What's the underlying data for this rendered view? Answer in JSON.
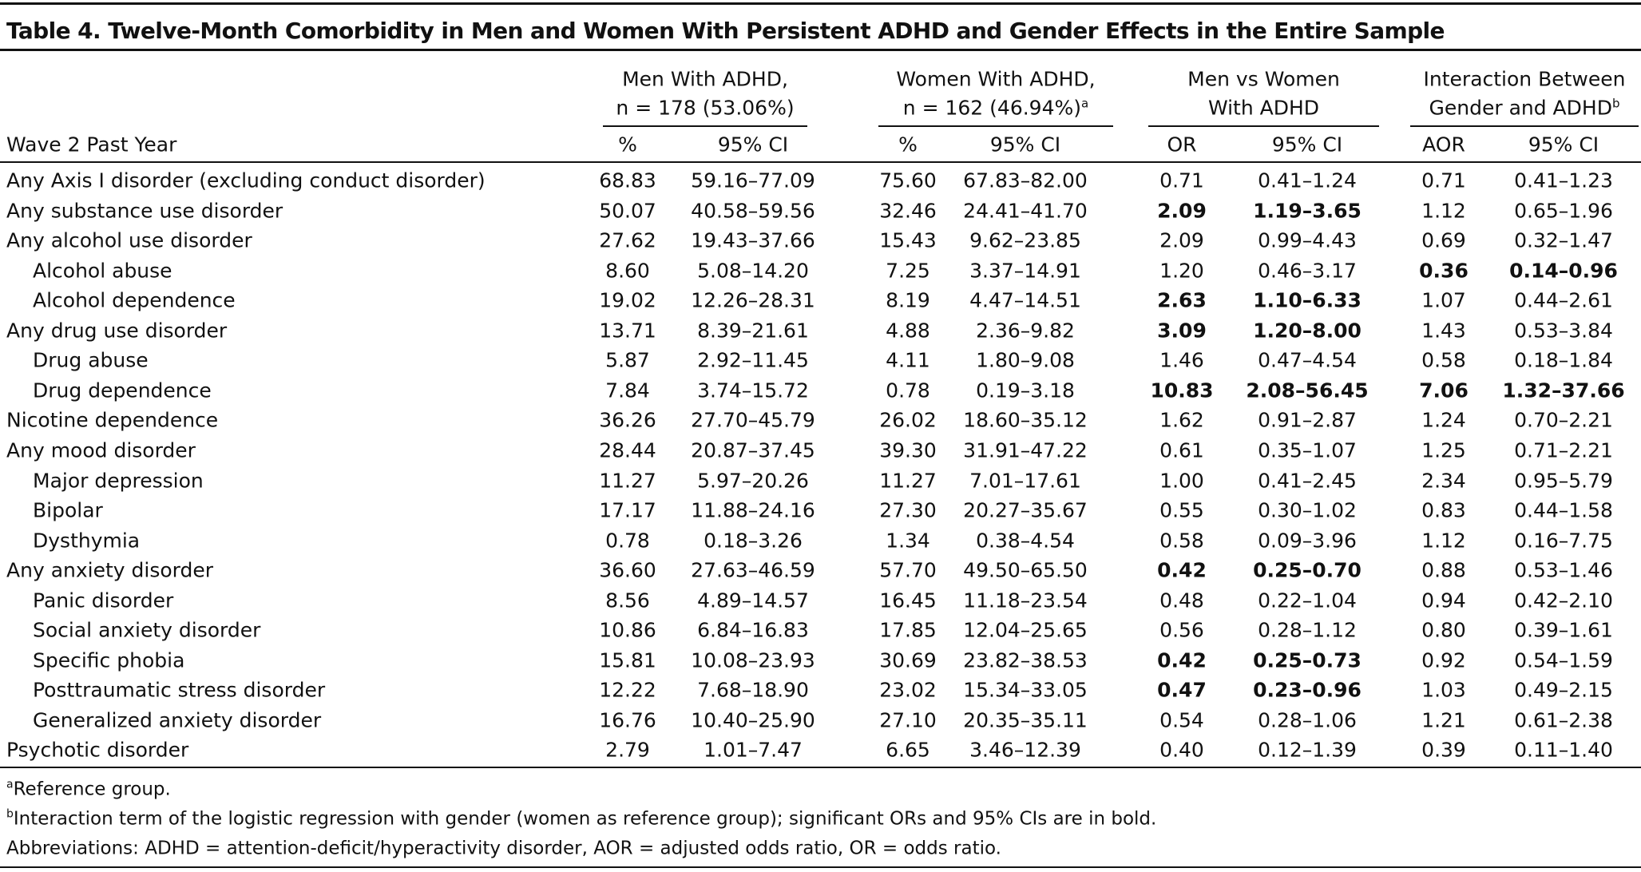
{
  "title": "Table 4. Twelve-Month Comorbidity in Men and Women With Persistent ADHD and Gender Effects in the Entire Sample",
  "groups": [
    {
      "lines": [
        "Men With ADHD,",
        "n = 178 (53.06%)"
      ]
    },
    {
      "lines": [
        "Women With ADHD,",
        "n = 162 (46.94%)"
      ],
      "sup": "a"
    },
    {
      "lines": [
        "Men vs Women",
        "With ADHD"
      ]
    },
    {
      "lines": [
        "Interaction Between",
        "Gender and ADHD"
      ],
      "sup": "b"
    }
  ],
  "row_header": "Wave 2 Past Year",
  "subheaders": [
    "%",
    "95% CI",
    "%",
    "95% CI",
    "OR",
    "95% CI",
    "AOR",
    "95% CI"
  ],
  "rows": [
    {
      "label": "Any Axis I disorder (excluding conduct disorder)",
      "cells": [
        "68.83",
        "59.16–77.09",
        "75.60",
        "67.83–82.00",
        "0.71",
        "0.41–1.24",
        "0.71",
        "0.41–1.23"
      ]
    },
    {
      "label": "Any substance use disorder",
      "cells": [
        "50.07",
        "40.58–59.56",
        "32.46",
        "24.41–41.70",
        "2.09",
        "1.19–3.65",
        "1.12",
        "0.65–1.96"
      ],
      "bold": [
        4,
        5
      ]
    },
    {
      "label": "Any alcohol use disorder",
      "cells": [
        "27.62",
        "19.43–37.66",
        "15.43",
        "9.62–23.85",
        "2.09",
        "0.99–4.43",
        "0.69",
        "0.32–1.47"
      ]
    },
    {
      "label": "Alcohol abuse",
      "indent": true,
      "cells": [
        "8.60",
        "5.08–14.20",
        "7.25",
        "3.37–14.91",
        "1.20",
        "0.46–3.17",
        "0.36",
        "0.14–0.96"
      ],
      "bold": [
        6,
        7
      ]
    },
    {
      "label": "Alcohol dependence",
      "indent": true,
      "cells": [
        "19.02",
        "12.26–28.31",
        "8.19",
        "4.47–14.51",
        "2.63",
        "1.10–6.33",
        "1.07",
        "0.44–2.61"
      ],
      "bold": [
        4,
        5
      ]
    },
    {
      "label": "Any drug use disorder",
      "cells": [
        "13.71",
        "8.39–21.61",
        "4.88",
        "2.36–9.82",
        "3.09",
        "1.20–8.00",
        "1.43",
        "0.53–3.84"
      ],
      "bold": [
        4,
        5
      ]
    },
    {
      "label": "Drug abuse",
      "indent": true,
      "cells": [
        "5.87",
        "2.92–11.45",
        "4.11",
        "1.80–9.08",
        "1.46",
        "0.47–4.54",
        "0.58",
        "0.18–1.84"
      ]
    },
    {
      "label": "Drug dependence",
      "indent": true,
      "cells": [
        "7.84",
        "3.74–15.72",
        "0.78",
        "0.19–3.18",
        "10.83",
        "2.08–56.45",
        "7.06",
        "1.32–37.66"
      ],
      "bold": [
        4,
        5,
        6,
        7
      ]
    },
    {
      "label": "Nicotine dependence",
      "cells": [
        "36.26",
        "27.70–45.79",
        "26.02",
        "18.60–35.12",
        "1.62",
        "0.91–2.87",
        "1.24",
        "0.70–2.21"
      ]
    },
    {
      "label": "Any mood disorder",
      "cells": [
        "28.44",
        "20.87–37.45",
        "39.30",
        "31.91–47.22",
        "0.61",
        "0.35–1.07",
        "1.25",
        "0.71–2.21"
      ]
    },
    {
      "label": "Major depression",
      "indent": true,
      "cells": [
        "11.27",
        "5.97–20.26",
        "11.27",
        "7.01–17.61",
        "1.00",
        "0.41–2.45",
        "2.34",
        "0.95–5.79"
      ]
    },
    {
      "label": "Bipolar",
      "indent": true,
      "cells": [
        "17.17",
        "11.88–24.16",
        "27.30",
        "20.27–35.67",
        "0.55",
        "0.30–1.02",
        "0.83",
        "0.44–1.58"
      ]
    },
    {
      "label": "Dysthymia",
      "indent": true,
      "cells": [
        "0.78",
        "0.18–3.26",
        "1.34",
        "0.38–4.54",
        "0.58",
        "0.09–3.96",
        "1.12",
        "0.16–7.75"
      ]
    },
    {
      "label": "Any anxiety disorder",
      "cells": [
        "36.60",
        "27.63–46.59",
        "57.70",
        "49.50–65.50",
        "0.42",
        "0.25–0.70",
        "0.88",
        "0.53–1.46"
      ],
      "bold": [
        4,
        5
      ]
    },
    {
      "label": "Panic disorder",
      "indent": true,
      "cells": [
        "8.56",
        "4.89–14.57",
        "16.45",
        "11.18–23.54",
        "0.48",
        "0.22–1.04",
        "0.94",
        "0.42–2.10"
      ]
    },
    {
      "label": "Social anxiety disorder",
      "indent": true,
      "cells": [
        "10.86",
        "6.84–16.83",
        "17.85",
        "12.04–25.65",
        "0.56",
        "0.28–1.12",
        "0.80",
        "0.39–1.61"
      ]
    },
    {
      "label": "Specific phobia",
      "indent": true,
      "cells": [
        "15.81",
        "10.08–23.93",
        "30.69",
        "23.82–38.53",
        "0.42",
        "0.25–0.73",
        "0.92",
        "0.54–1.59"
      ],
      "bold": [
        4,
        5
      ]
    },
    {
      "label": "Posttraumatic stress disorder",
      "indent": true,
      "cells": [
        "12.22",
        "7.68–18.90",
        "23.02",
        "15.34–33.05",
        "0.47",
        "0.23–0.96",
        "1.03",
        "0.49–2.15"
      ],
      "bold": [
        4,
        5
      ]
    },
    {
      "label": "Generalized anxiety disorder",
      "indent": true,
      "cells": [
        "16.76",
        "10.40–25.90",
        "27.10",
        "20.35–35.11",
        "0.54",
        "0.28–1.06",
        "1.21",
        "0.61–2.38"
      ]
    },
    {
      "label": "Psychotic disorder",
      "cells": [
        "2.79",
        "1.01–7.47",
        "6.65",
        "3.46–12.39",
        "0.40",
        "0.12–1.39",
        "0.39",
        "0.11–1.40"
      ]
    }
  ],
  "footnotes": [
    {
      "sup": "a",
      "text": "Reference group."
    },
    {
      "sup": "b",
      "text": "Interaction term of the logistic regression with gender (women as reference group); significant ORs and 95% CIs are in bold."
    },
    {
      "text": "Abbreviations: ADHD = attention-deficit/hyperactivity disorder, AOR = adjusted odds ratio, OR = odds ratio."
    }
  ]
}
